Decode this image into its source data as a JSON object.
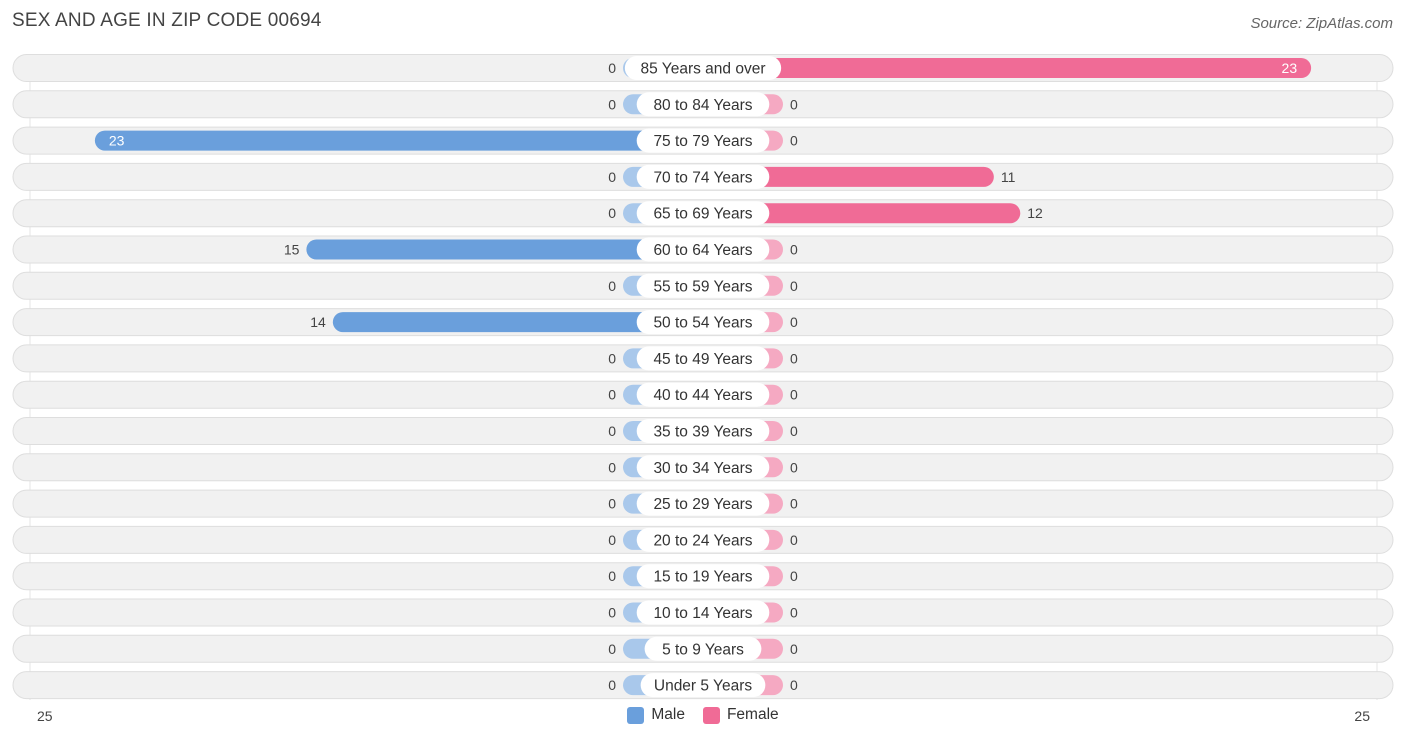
{
  "title": "SEX AND AGE IN ZIP CODE 00694",
  "source": "Source: ZipAtlas.com",
  "colors": {
    "male": "#6a9fdc",
    "male_light": "#a9c8eb",
    "female": "#f06b96",
    "female_light": "#f5a9c2"
  },
  "legend": {
    "male": "Male",
    "female": "Female"
  },
  "axis": {
    "left_tick": "25",
    "right_tick": "25"
  },
  "chart_data": {
    "type": "bar",
    "orientation": "horizontal-diverging",
    "title": "SEX AND AGE IN ZIP CODE 00694",
    "categories": [
      "85 Years and over",
      "80 to 84 Years",
      "75 to 79 Years",
      "70 to 74 Years",
      "65 to 69 Years",
      "60 to 64 Years",
      "55 to 59 Years",
      "50 to 54 Years",
      "45 to 49 Years",
      "40 to 44 Years",
      "35 to 39 Years",
      "30 to 34 Years",
      "25 to 29 Years",
      "20 to 24 Years",
      "15 to 19 Years",
      "10 to 14 Years",
      "5 to 9 Years",
      "Under 5 Years"
    ],
    "series": [
      {
        "name": "Male",
        "values": [
          0,
          0,
          23,
          0,
          0,
          15,
          0,
          14,
          0,
          0,
          0,
          0,
          0,
          0,
          0,
          0,
          0,
          0
        ]
      },
      {
        "name": "Female",
        "values": [
          23,
          0,
          0,
          11,
          12,
          0,
          0,
          0,
          0,
          0,
          0,
          0,
          0,
          0,
          0,
          0,
          0,
          0
        ]
      }
    ],
    "xlim": [
      -25,
      25
    ],
    "legend_position": "bottom-center"
  }
}
